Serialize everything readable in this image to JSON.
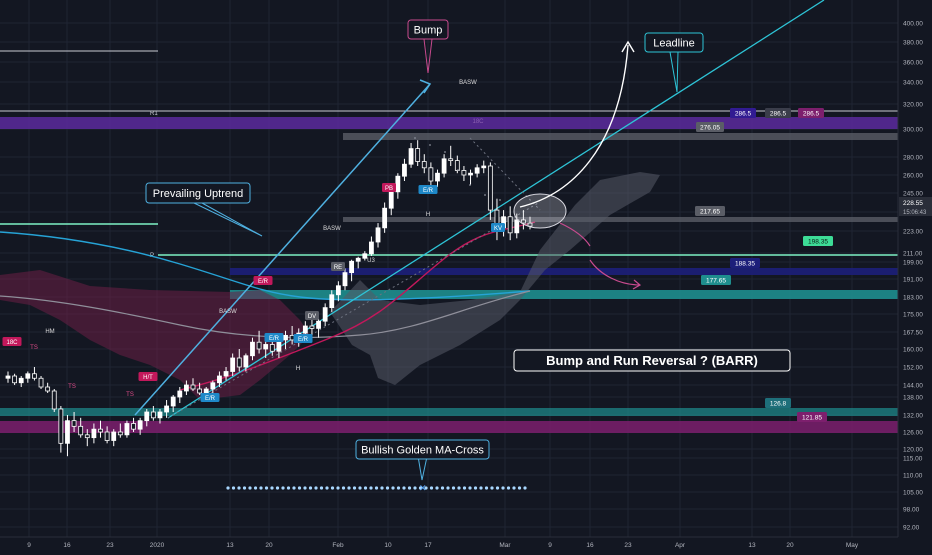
{
  "colors": {
    "background": "#131722",
    "grid": "#1f2433",
    "axis_text": "#b2b5be",
    "candle_up": "#ffffff",
    "candle_down": "#131722",
    "wick": "#ffffff",
    "ma_fast": "#c2185b",
    "ma_slow": "#8f8f9a",
    "ma_long": "#26a3d6",
    "cloud_red": "#6b1f45",
    "cloud_grey": "#555a66",
    "trend": "#4fb0e0",
    "leadline": "#2ec4d6",
    "band_purple": "#5c2a9d",
    "band_teal": "#1e8e8e",
    "band_navy": "#1d1f7a",
    "band_magenta": "#7d1f6d",
    "band_grey": "#5a5d66",
    "mint": "#7ef2c5",
    "callout_pink": "#c94b8f"
  },
  "chart_data": {
    "type": "candlestick",
    "title": "Bump and Run Reversal ? (BARR)",
    "y_axis": {
      "ylim": [
        88,
        405
      ],
      "ticks": [
        92,
        98,
        105,
        110,
        115,
        120,
        126,
        132,
        138,
        144,
        152,
        160,
        167.5,
        175,
        183,
        191,
        199,
        211,
        223,
        235,
        245,
        260,
        280,
        300,
        320,
        340,
        360,
        380,
        400
      ],
      "tick_labels": [
        "92.00",
        "98.00",
        "105.00",
        "110.00",
        "115.00",
        "120.00",
        "126.00",
        "132.00",
        "138.00",
        "144.00",
        "152.00",
        "160.00",
        "167.50",
        "175.00",
        "183.00",
        "191.00",
        "199.00",
        "211.00",
        "223.00",
        "235.00",
        "245.00",
        "260.00",
        "280.00",
        "300.00",
        "320.00",
        "340.00",
        "360.00",
        "380.00",
        "400.00"
      ],
      "scale": "log"
    },
    "x_axis": {
      "tick_labels": [
        "9",
        "16",
        "23",
        "2020",
        "13",
        "20",
        "Feb",
        "10",
        "17",
        "Mar",
        "9",
        "16",
        "23",
        "Apr",
        "13",
        "20",
        "May"
      ]
    },
    "price_tags": [
      {
        "value": "228.55",
        "sub": "15:06:43"
      },
      {
        "value": "286.5"
      },
      {
        "value": "286.5"
      },
      {
        "value": "286.5"
      },
      {
        "value": "276.05"
      },
      {
        "value": "217.65"
      },
      {
        "value": "198.35"
      },
      {
        "value": "188.35"
      },
      {
        "value": "177.65"
      },
      {
        "value": "126.8"
      },
      {
        "value": "121.85"
      }
    ],
    "level_labels": [
      "R1",
      "P"
    ],
    "annotations": [
      "Bump",
      "Leadline",
      "Prevailing Uptrend",
      "Bullish Golden MA-Cross",
      "Bump and Run Reversal ? (BARR)"
    ],
    "markers": [
      {
        "text": "HM"
      },
      {
        "text": "TS"
      },
      {
        "text": "BASW"
      },
      {
        "text": "BASW"
      },
      {
        "text": "BASW"
      },
      {
        "text": "E/R"
      },
      {
        "text": "E/R"
      },
      {
        "text": "E/R"
      },
      {
        "text": "E/R"
      },
      {
        "text": "E/R"
      },
      {
        "text": "PB"
      },
      {
        "text": "RE"
      },
      {
        "text": "DV"
      },
      {
        "text": "H"
      },
      {
        "text": "H"
      },
      {
        "text": "H"
      },
      {
        "text": "U3"
      },
      {
        "text": "KV"
      },
      {
        "text": "H/T"
      },
      {
        "text": "TS"
      },
      {
        "text": "TS"
      },
      {
        "text": "H/"
      },
      {
        "text": "18C"
      }
    ],
    "candles": [
      [
        147,
        150,
        145,
        148
      ],
      [
        148,
        149,
        144,
        145
      ],
      [
        145,
        148,
        143,
        147
      ],
      [
        147,
        150,
        145,
        149
      ],
      [
        149,
        152,
        146,
        147
      ],
      [
        147,
        148,
        142,
        143
      ],
      [
        143,
        145,
        140,
        141
      ],
      [
        141,
        142,
        133,
        134
      ],
      [
        134,
        135,
        118,
        122
      ],
      [
        122,
        132,
        116,
        130
      ],
      [
        130,
        133,
        126,
        128
      ],
      [
        128,
        131,
        124,
        125
      ],
      [
        125,
        127,
        121,
        124
      ],
      [
        124,
        129,
        122,
        127
      ],
      [
        127,
        130,
        124,
        126
      ],
      [
        126,
        128,
        122,
        123
      ],
      [
        123,
        127,
        121,
        126
      ],
      [
        126,
        129,
        124,
        125
      ],
      [
        125,
        130,
        124,
        129
      ],
      [
        129,
        131,
        126,
        127
      ],
      [
        127,
        131,
        125,
        130
      ],
      [
        130,
        134,
        128,
        133
      ],
      [
        133,
        135,
        130,
        131
      ],
      [
        131,
        134,
        129,
        133
      ],
      [
        133,
        137,
        131,
        135
      ],
      [
        135,
        139,
        133,
        138
      ],
      [
        138,
        143,
        136,
        141
      ],
      [
        141,
        146,
        139,
        144
      ],
      [
        144,
        147,
        141,
        142
      ],
      [
        142,
        145,
        139,
        140
      ],
      [
        140,
        143,
        138,
        142
      ],
      [
        142,
        146,
        140,
        145
      ],
      [
        145,
        150,
        143,
        148
      ],
      [
        148,
        152,
        146,
        150
      ],
      [
        150,
        158,
        148,
        156
      ],
      [
        156,
        160,
        150,
        152
      ],
      [
        152,
        158,
        150,
        157
      ],
      [
        157,
        165,
        155,
        163
      ],
      [
        163,
        168,
        158,
        160
      ],
      [
        160,
        164,
        156,
        162
      ],
      [
        162,
        166,
        157,
        159
      ],
      [
        159,
        165,
        156,
        164
      ],
      [
        164,
        168,
        160,
        166
      ],
      [
        166,
        170,
        162,
        164
      ],
      [
        164,
        169,
        161,
        167
      ],
      [
        167,
        172,
        164,
        170
      ],
      [
        170,
        174,
        166,
        169
      ],
      [
        169,
        173,
        165,
        172
      ],
      [
        172,
        180,
        170,
        178
      ],
      [
        178,
        186,
        176,
        184
      ],
      [
        184,
        190,
        181,
        188
      ],
      [
        188,
        196,
        186,
        194
      ],
      [
        194,
        202,
        190,
        200
      ],
      [
        200,
        206,
        196,
        204
      ],
      [
        204,
        212,
        201,
        210
      ],
      [
        210,
        220,
        207,
        217
      ],
      [
        217,
        228,
        214,
        225
      ],
      [
        225,
        240,
        222,
        237
      ],
      [
        237,
        250,
        233,
        246
      ],
      [
        246,
        262,
        242,
        259
      ],
      [
        259,
        278,
        255,
        272
      ],
      [
        272,
        290,
        268,
        286
      ],
      [
        286,
        292,
        270,
        275
      ],
      [
        275,
        282,
        262,
        268
      ],
      [
        268,
        274,
        250,
        255
      ],
      [
        255,
        266,
        250,
        262
      ],
      [
        262,
        282,
        258,
        278
      ],
      [
        278,
        288,
        270,
        276
      ],
      [
        276,
        281,
        262,
        265
      ],
      [
        265,
        270,
        255,
        260
      ],
      [
        260,
        266,
        252,
        262
      ],
      [
        262,
        272,
        258,
        268
      ],
      [
        268,
        276,
        262,
        270
      ],
      [
        270,
        274,
        230,
        236
      ],
      [
        236,
        242,
        218,
        225
      ],
      [
        225,
        236,
        220,
        232
      ],
      [
        232,
        238,
        218,
        222
      ],
      [
        222,
        234,
        219,
        230
      ],
      [
        230,
        236,
        224,
        228
      ],
      [
        228,
        232,
        224,
        226
      ]
    ]
  }
}
